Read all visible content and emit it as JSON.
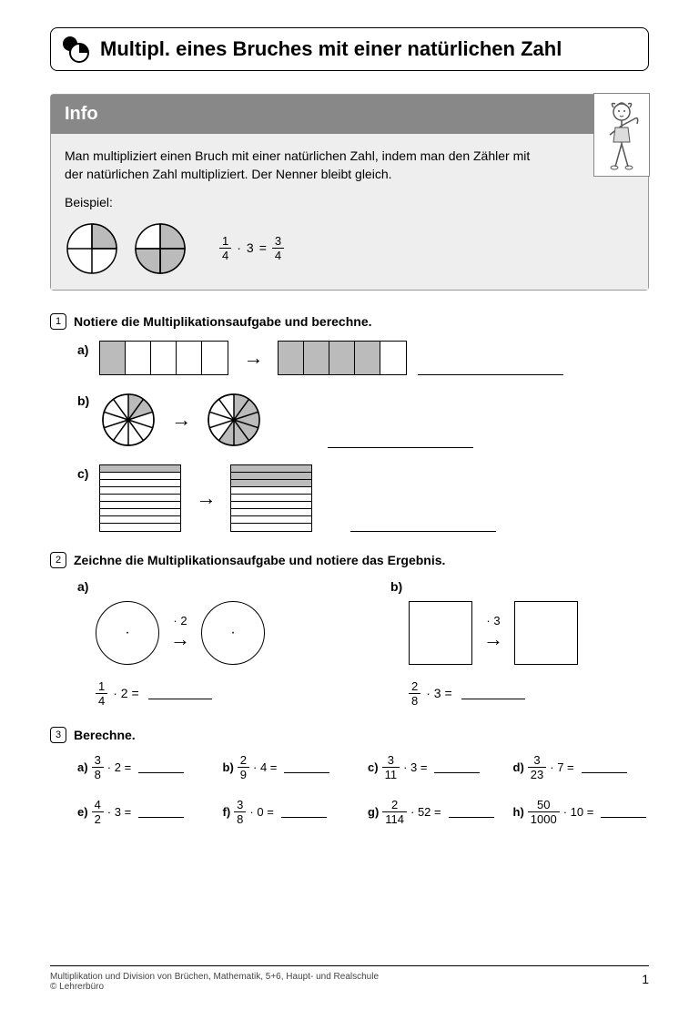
{
  "header": {
    "title": "Multipl. eines Bruches mit einer natürlichen Zahl"
  },
  "info": {
    "header": "Info",
    "text": "Man multipliziert einen Bruch mit einer natürlichen Zahl, indem man den Zähler mit der natürlichen Zahl multipliziert. Der Nenner bleibt gleich.",
    "beispiel_label": "Beispiel:",
    "example": {
      "num1": "1",
      "den1": "4",
      "op": "·",
      "factor": "3",
      "eq": "=",
      "num2": "3",
      "den2": "4"
    },
    "pie1": {
      "slices": 4,
      "shaded": [
        0
      ]
    },
    "pie2": {
      "slices": 4,
      "shaded": [
        0,
        1,
        2
      ]
    }
  },
  "ex1": {
    "num": "1",
    "title": "Notiere die Multiplikationsaufgabe und berechne.",
    "a": {
      "label": "a)",
      "strip1": {
        "cells": 5,
        "shaded": [
          0
        ],
        "cellw": 28
      },
      "strip2": {
        "cells": 5,
        "shaded": [
          0,
          1,
          2,
          3
        ],
        "cellw": 28
      }
    },
    "b": {
      "label": "b)",
      "pie1": {
        "slices": 10,
        "shaded": [
          0,
          1
        ]
      },
      "pie2": {
        "slices": 10,
        "shaded": [
          0,
          1,
          2,
          3,
          4,
          5
        ]
      }
    },
    "c": {
      "label": "c)",
      "stack1": {
        "rows": 9,
        "shaded": [
          0
        ]
      },
      "stack2": {
        "rows": 9,
        "shaded": [
          0,
          1,
          2
        ]
      }
    }
  },
  "ex2": {
    "num": "2",
    "title": "Zeichne die Multiplikationsaufgabe und notiere das Ergebnis.",
    "a": {
      "label": "a)",
      "mult": "· 2",
      "frac": {
        "num": "1",
        "den": "4"
      },
      "factor": "· 2 ="
    },
    "b": {
      "label": "b)",
      "mult": "· 3",
      "frac": {
        "num": "2",
        "den": "8"
      },
      "factor": "· 3 ="
    }
  },
  "ex3": {
    "num": "3",
    "title": "Berechne.",
    "items": [
      {
        "l": "a)",
        "n": "3",
        "d": "8",
        "f": "· 2 ="
      },
      {
        "l": "b)",
        "n": "2",
        "d": "9",
        "f": "· 4 ="
      },
      {
        "l": "c)",
        "n": "3",
        "d": "11",
        "f": "· 3 ="
      },
      {
        "l": "d)",
        "n": "3",
        "d": "23",
        "f": "· 7 ="
      },
      {
        "l": "e)",
        "n": "4",
        "d": "2",
        "f": "· 3 ="
      },
      {
        "l": "f)",
        "n": "3",
        "d": "8",
        "f": "· 0 ="
      },
      {
        "l": "g)",
        "n": "2",
        "d": "114",
        "f": "· 52 ="
      },
      {
        "l": "h)",
        "n": "50",
        "d": "1000",
        "f": "· 10 ="
      }
    ]
  },
  "footer": {
    "line1": "Multiplikation und Division von Brüchen, Mathematik, 5+6, Haupt- und Realschule",
    "line2": "© Lehrerbüro",
    "page": "1"
  }
}
